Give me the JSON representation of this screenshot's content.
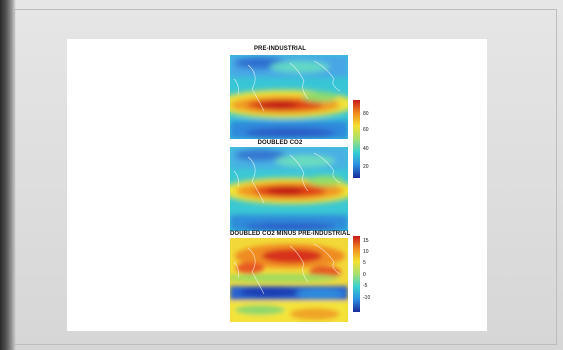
{
  "chart_data": [
    {
      "type": "heatmap",
      "title": "PRE-INDUSTRIAL",
      "colorbar": {
        "ticks": [
          80,
          60,
          40,
          20
        ],
        "range": [
          12,
          92
        ],
        "colors": [
          "#1a2a9a",
          "#2a8ee0",
          "#38d1d0",
          "#a8e070",
          "#f4e030",
          "#f08a20",
          "#c81818"
        ]
      }
    },
    {
      "type": "heatmap",
      "title": "DOUBLED CO2",
      "colorbar": {
        "ticks": [
          80,
          60,
          40,
          20
        ],
        "range": [
          12,
          92
        ],
        "colors": [
          "#1a2a9a",
          "#2a8ee0",
          "#38d1d0",
          "#a8e070",
          "#f4e030",
          "#f08a20",
          "#c81818"
        ]
      }
    },
    {
      "type": "heatmap",
      "title": "DOUBLED CO2 MINUS PRE-INDUSTRIAL",
      "colorbar": {
        "ticks": [
          15,
          10,
          5,
          0,
          -5,
          -10
        ],
        "range": [
          -14,
          18
        ],
        "colors": [
          "#1a2a9a",
          "#2a8ee0",
          "#38d1d0",
          "#a8e070",
          "#f4e030",
          "#f08a20",
          "#c81818"
        ]
      }
    }
  ]
}
